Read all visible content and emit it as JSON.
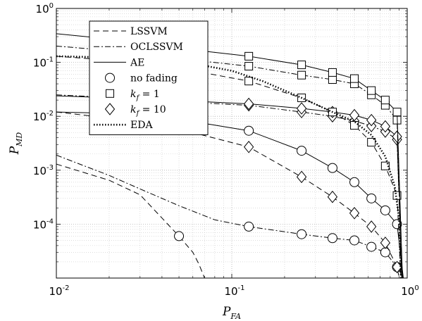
{
  "chart_data": {
    "type": "line",
    "xscale": "log",
    "yscale": "log",
    "xlim": [
      0.01,
      1
    ],
    "ylim": [
      1e-05,
      1
    ],
    "grid": true,
    "legend_placement": "top-left",
    "xlabel": {
      "main": "P",
      "sub": "FA"
    },
    "ylabel": {
      "main": "P",
      "sub": "MD"
    },
    "x_ticks": [
      {
        "value": 0.01,
        "base": "10",
        "exp": "-2"
      },
      {
        "value": 0.1,
        "base": "10",
        "exp": "-1"
      },
      {
        "value": 1,
        "base": "10",
        "exp": "0"
      }
    ],
    "y_ticks": [
      {
        "value": 0.0001,
        "base": "10",
        "exp": "-4"
      },
      {
        "value": 0.001,
        "base": "10",
        "exp": "-3"
      },
      {
        "value": 0.01,
        "base": "10",
        "exp": "-2"
      },
      {
        "value": 0.1,
        "base": "10",
        "exp": "-1"
      },
      {
        "value": 1,
        "base": "10",
        "exp": "0"
      }
    ],
    "legend": [
      {
        "label": "LSSVM",
        "kind": "line",
        "style": "dashed"
      },
      {
        "label": "OCLSSVM",
        "kind": "line",
        "style": "dashdot"
      },
      {
        "label": "AE",
        "kind": "line",
        "style": "solid"
      },
      {
        "label": "no fading",
        "kind": "marker",
        "marker": "circle"
      },
      {
        "label_pre": "k",
        "label_sub": "f",
        "label_post": " = 1",
        "kind": "marker",
        "marker": "square"
      },
      {
        "label_pre": "k",
        "label_sub": "f",
        "label_post": " = 10",
        "kind": "marker",
        "marker": "diamond"
      },
      {
        "label": "EDA",
        "kind": "line",
        "style": "dotted"
      }
    ],
    "series": [
      {
        "method": "LSSVM",
        "condition": "no fading",
        "style": "dashed",
        "marker": "circle",
        "x": [
          0.01,
          0.02,
          0.03,
          0.04,
          0.05,
          0.06,
          0.065,
          0.07
        ],
        "y": [
          0.0013,
          0.00065,
          0.00035,
          0.00013,
          6e-05,
          3e-05,
          1.8e-05,
          1e-05
        ],
        "markers_x": [
          0.05
        ],
        "markers_y": [
          6e-05
        ]
      },
      {
        "method": "OCLSSVM",
        "condition": "no fading",
        "style": "dashdot",
        "marker": "circle",
        "x": [
          0.01,
          0.02,
          0.03,
          0.05,
          0.08,
          0.125,
          0.25,
          0.375,
          0.5,
          0.625,
          0.75,
          0.85,
          0.9,
          0.95
        ],
        "y": [
          0.0019,
          0.0008,
          0.00045,
          0.00022,
          0.00012,
          9e-05,
          6.5e-05,
          5.5e-05,
          5e-05,
          3.8e-05,
          3e-05,
          1.8e-05,
          1.4e-05,
          1e-05
        ],
        "markers_x": [
          0.125,
          0.25,
          0.375,
          0.5,
          0.625,
          0.75,
          0.875
        ],
        "markers_y": [
          9e-05,
          6.5e-05,
          5.5e-05,
          5e-05,
          3.8e-05,
          3e-05,
          1.6e-05
        ]
      },
      {
        "method": "AE",
        "condition": "no fading",
        "style": "solid",
        "marker": "circle",
        "x": [
          0.01,
          0.03,
          0.06,
          0.125,
          0.25,
          0.375,
          0.5,
          0.625,
          0.75,
          0.875,
          0.95
        ],
        "y": [
          0.012,
          0.011,
          0.008,
          0.0054,
          0.0023,
          0.0011,
          0.0006,
          0.0003,
          0.00018,
          0.0001,
          1e-05
        ],
        "markers_x": [
          0.125,
          0.25,
          0.375,
          0.5,
          0.625,
          0.75,
          0.875
        ],
        "markers_y": [
          0.0054,
          0.0023,
          0.0011,
          0.0006,
          0.0003,
          0.00018,
          0.0001
        ]
      },
      {
        "method": "LSSVM",
        "condition": "kf = 10",
        "style": "dashed",
        "marker": "diamond",
        "x": [
          0.01,
          0.03,
          0.06,
          0.125,
          0.25,
          0.375,
          0.5,
          0.625,
          0.75,
          0.875,
          0.9
        ],
        "y": [
          0.012,
          0.008,
          0.005,
          0.0027,
          0.00075,
          0.00032,
          0.00016,
          9e-05,
          4.5e-05,
          1.6e-05,
          1e-05
        ],
        "markers_x": [
          0.125,
          0.25,
          0.375,
          0.5,
          0.625,
          0.75,
          0.875
        ],
        "markers_y": [
          0.0027,
          0.00075,
          0.00032,
          0.00016,
          9e-05,
          4.5e-05,
          1.6e-05
        ]
      },
      {
        "method": "OCLSSVM",
        "condition": "kf = 10",
        "style": "dashdot",
        "marker": "diamond",
        "x": [
          0.01,
          0.03,
          0.06,
          0.125,
          0.25,
          0.375,
          0.5,
          0.625,
          0.75,
          0.875,
          0.93
        ],
        "y": [
          0.025,
          0.021,
          0.018,
          0.016,
          0.012,
          0.01,
          0.0082,
          0.0066,
          0.0052,
          0.0037,
          1e-05
        ],
        "markers_x": [
          0.125,
          0.25,
          0.375,
          0.5,
          0.625,
          0.75,
          0.875
        ],
        "markers_y": [
          0.016,
          0.012,
          0.01,
          0.0082,
          0.0066,
          0.0052,
          0.0037
        ]
      },
      {
        "method": "AE",
        "condition": "kf = 10",
        "style": "solid",
        "marker": "diamond",
        "x": [
          0.01,
          0.03,
          0.06,
          0.125,
          0.25,
          0.375,
          0.5,
          0.625,
          0.75,
          0.875,
          0.93
        ],
        "y": [
          0.024,
          0.021,
          0.019,
          0.017,
          0.014,
          0.012,
          0.0105,
          0.0085,
          0.0065,
          0.0042,
          1e-05
        ],
        "markers_x": [
          0.125,
          0.25,
          0.375,
          0.5,
          0.625,
          0.75,
          0.875
        ],
        "markers_y": [
          0.017,
          0.014,
          0.012,
          0.0105,
          0.0085,
          0.0065,
          0.0042
        ]
      },
      {
        "method": "LSSVM",
        "condition": "kf = 1",
        "style": "dashed",
        "marker": "square",
        "x": [
          0.01,
          0.03,
          0.06,
          0.125,
          0.25,
          0.375,
          0.5,
          0.625,
          0.75,
          0.875,
          0.92
        ],
        "y": [
          0.13,
          0.1,
          0.07,
          0.045,
          0.022,
          0.012,
          0.0068,
          0.0033,
          0.0012,
          0.00034,
          1e-05
        ],
        "markers_x": [
          0.125,
          0.25,
          0.375,
          0.5,
          0.625,
          0.75,
          0.875
        ],
        "markers_y": [
          0.045,
          0.022,
          0.012,
          0.0068,
          0.0033,
          0.0012,
          0.00034
        ]
      },
      {
        "method": "OCLSSVM",
        "condition": "kf = 1",
        "style": "dashdot",
        "marker": "square",
        "x": [
          0.01,
          0.03,
          0.06,
          0.125,
          0.25,
          0.375,
          0.5,
          0.625,
          0.75,
          0.875,
          0.93
        ],
        "y": [
          0.2,
          0.15,
          0.11,
          0.085,
          0.058,
          0.048,
          0.04,
          0.025,
          0.016,
          0.0085,
          1e-05
        ],
        "markers_x": [
          0.125,
          0.25,
          0.375,
          0.5,
          0.625,
          0.75,
          0.875
        ],
        "markers_y": [
          0.085,
          0.058,
          0.048,
          0.04,
          0.025,
          0.016,
          0.0085
        ]
      },
      {
        "method": "AE",
        "condition": "kf = 1",
        "style": "solid",
        "marker": "square",
        "x": [
          0.01,
          0.03,
          0.06,
          0.125,
          0.25,
          0.375,
          0.5,
          0.625,
          0.75,
          0.875,
          0.94
        ],
        "y": [
          0.34,
          0.24,
          0.17,
          0.13,
          0.09,
          0.065,
          0.05,
          0.03,
          0.02,
          0.012,
          1e-05
        ],
        "markers_x": [
          0.125,
          0.25,
          0.375,
          0.5,
          0.625,
          0.75,
          0.875
        ],
        "markers_y": [
          0.13,
          0.09,
          0.065,
          0.05,
          0.03,
          0.02,
          0.012
        ]
      },
      {
        "method": "EDA",
        "condition": "",
        "style": "dotted",
        "marker": "none",
        "x": [
          0.01,
          0.03,
          0.06,
          0.1,
          0.15,
          0.25,
          0.375,
          0.5,
          0.625,
          0.75,
          0.85,
          0.9,
          0.92
        ],
        "y": [
          0.13,
          0.12,
          0.095,
          0.07,
          0.045,
          0.022,
          0.012,
          0.008,
          0.0045,
          0.0018,
          0.0005,
          0.00012,
          1e-05
        ],
        "markers_x": [],
        "markers_y": []
      }
    ]
  }
}
